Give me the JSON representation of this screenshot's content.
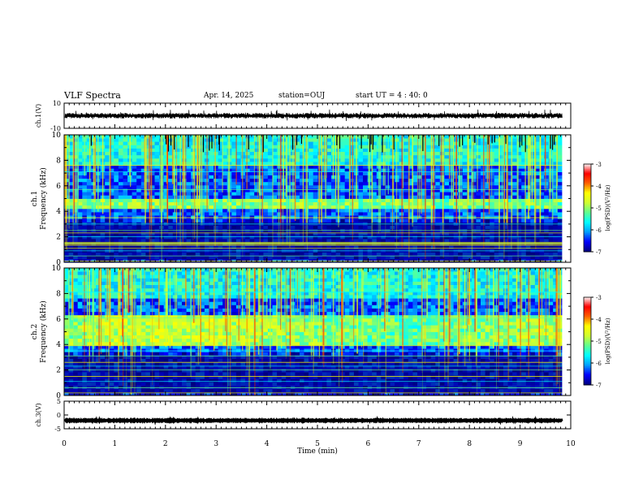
{
  "header": {
    "title": "VLF Spectra",
    "date": "Apr. 14, 2025",
    "station": "station=OUJ",
    "start_ut": "start  UT =   4 : 40: 0"
  },
  "chart_data": [
    {
      "type": "line",
      "panel": "ch1-waveform",
      "ylabel": "ch.1(V)",
      "ylim": [
        -10,
        10
      ],
      "yticks": [
        "10",
        "-10"
      ],
      "x_range": [
        0,
        10
      ],
      "data_extent_min": 9.83,
      "signal": {
        "baseline": 0,
        "amplitude_approx": 1.5
      }
    },
    {
      "type": "heatmap",
      "panel": "ch1-spectrogram",
      "ylabel_channel": "ch.1",
      "ylabel": "Frequency (kHz)",
      "ylim": [
        0,
        10
      ],
      "yticks": [
        "0",
        "2",
        "4",
        "6",
        "8",
        "10"
      ],
      "x_range": [
        0,
        10
      ],
      "data_extent_min": 9.83,
      "colorbar": {
        "label": "log(PSD)(V²/Hz)",
        "range": [
          -7,
          -3
        ],
        "ticks": [
          "-3",
          "-4",
          "-5",
          "-6",
          "-7"
        ]
      },
      "features": {
        "strong_band_khz": [
          1.3,
          1.6
        ],
        "emission_band_khz": [
          4.2,
          5.0
        ],
        "horizontal_lines_khz": [
          0.1,
          0.5,
          0.9,
          1.1,
          1.5,
          2.0,
          2.3,
          2.5,
          3.0,
          3.5,
          5.7,
          7.1,
          7.6
        ]
      }
    },
    {
      "type": "heatmap",
      "panel": "ch2-spectrogram",
      "ylabel_channel": "ch.2",
      "ylabel": "Frequency (kHz)",
      "ylim": [
        0,
        10
      ],
      "yticks": [
        "0",
        "2",
        "4",
        "6",
        "8",
        "10"
      ],
      "x_range": [
        0,
        10
      ],
      "data_extent_min": 9.83,
      "colorbar": {
        "label": "log(PSD)(V²/Hz)",
        "range": [
          -7,
          -3
        ],
        "ticks": [
          "-3",
          "-4",
          "-5",
          "-6",
          "-7"
        ]
      },
      "features": {
        "emission_band_khz": [
          3.9,
          6.2
        ],
        "horizontal_lines_khz": [
          0.2,
          0.6,
          1.1,
          1.5,
          2.0,
          2.3,
          2.6,
          3.1,
          3.5,
          3.9,
          6.1,
          8.1
        ]
      }
    },
    {
      "type": "line",
      "panel": "ch3-waveform",
      "ylabel": "ch.3(V)",
      "ylim": [
        -5,
        5
      ],
      "yticks": [
        "5",
        "0",
        "-5"
      ],
      "x_range": [
        0,
        10
      ],
      "data_extent_min": 9.83,
      "signal": {
        "baseline": -2,
        "amplitude_approx": 0.3
      }
    }
  ],
  "x_axis": {
    "label": "Time (min)",
    "ticks": [
      "0",
      "1",
      "2",
      "3",
      "4",
      "5",
      "6",
      "7",
      "8",
      "9",
      "10"
    ]
  },
  "colormap": [
    "#00007f",
    "#0000ff",
    "#00a0ff",
    "#00ffff",
    "#60ff90",
    "#d0ff30",
    "#ffff00",
    "#ff6000",
    "#ff0000",
    "#ffffff"
  ]
}
